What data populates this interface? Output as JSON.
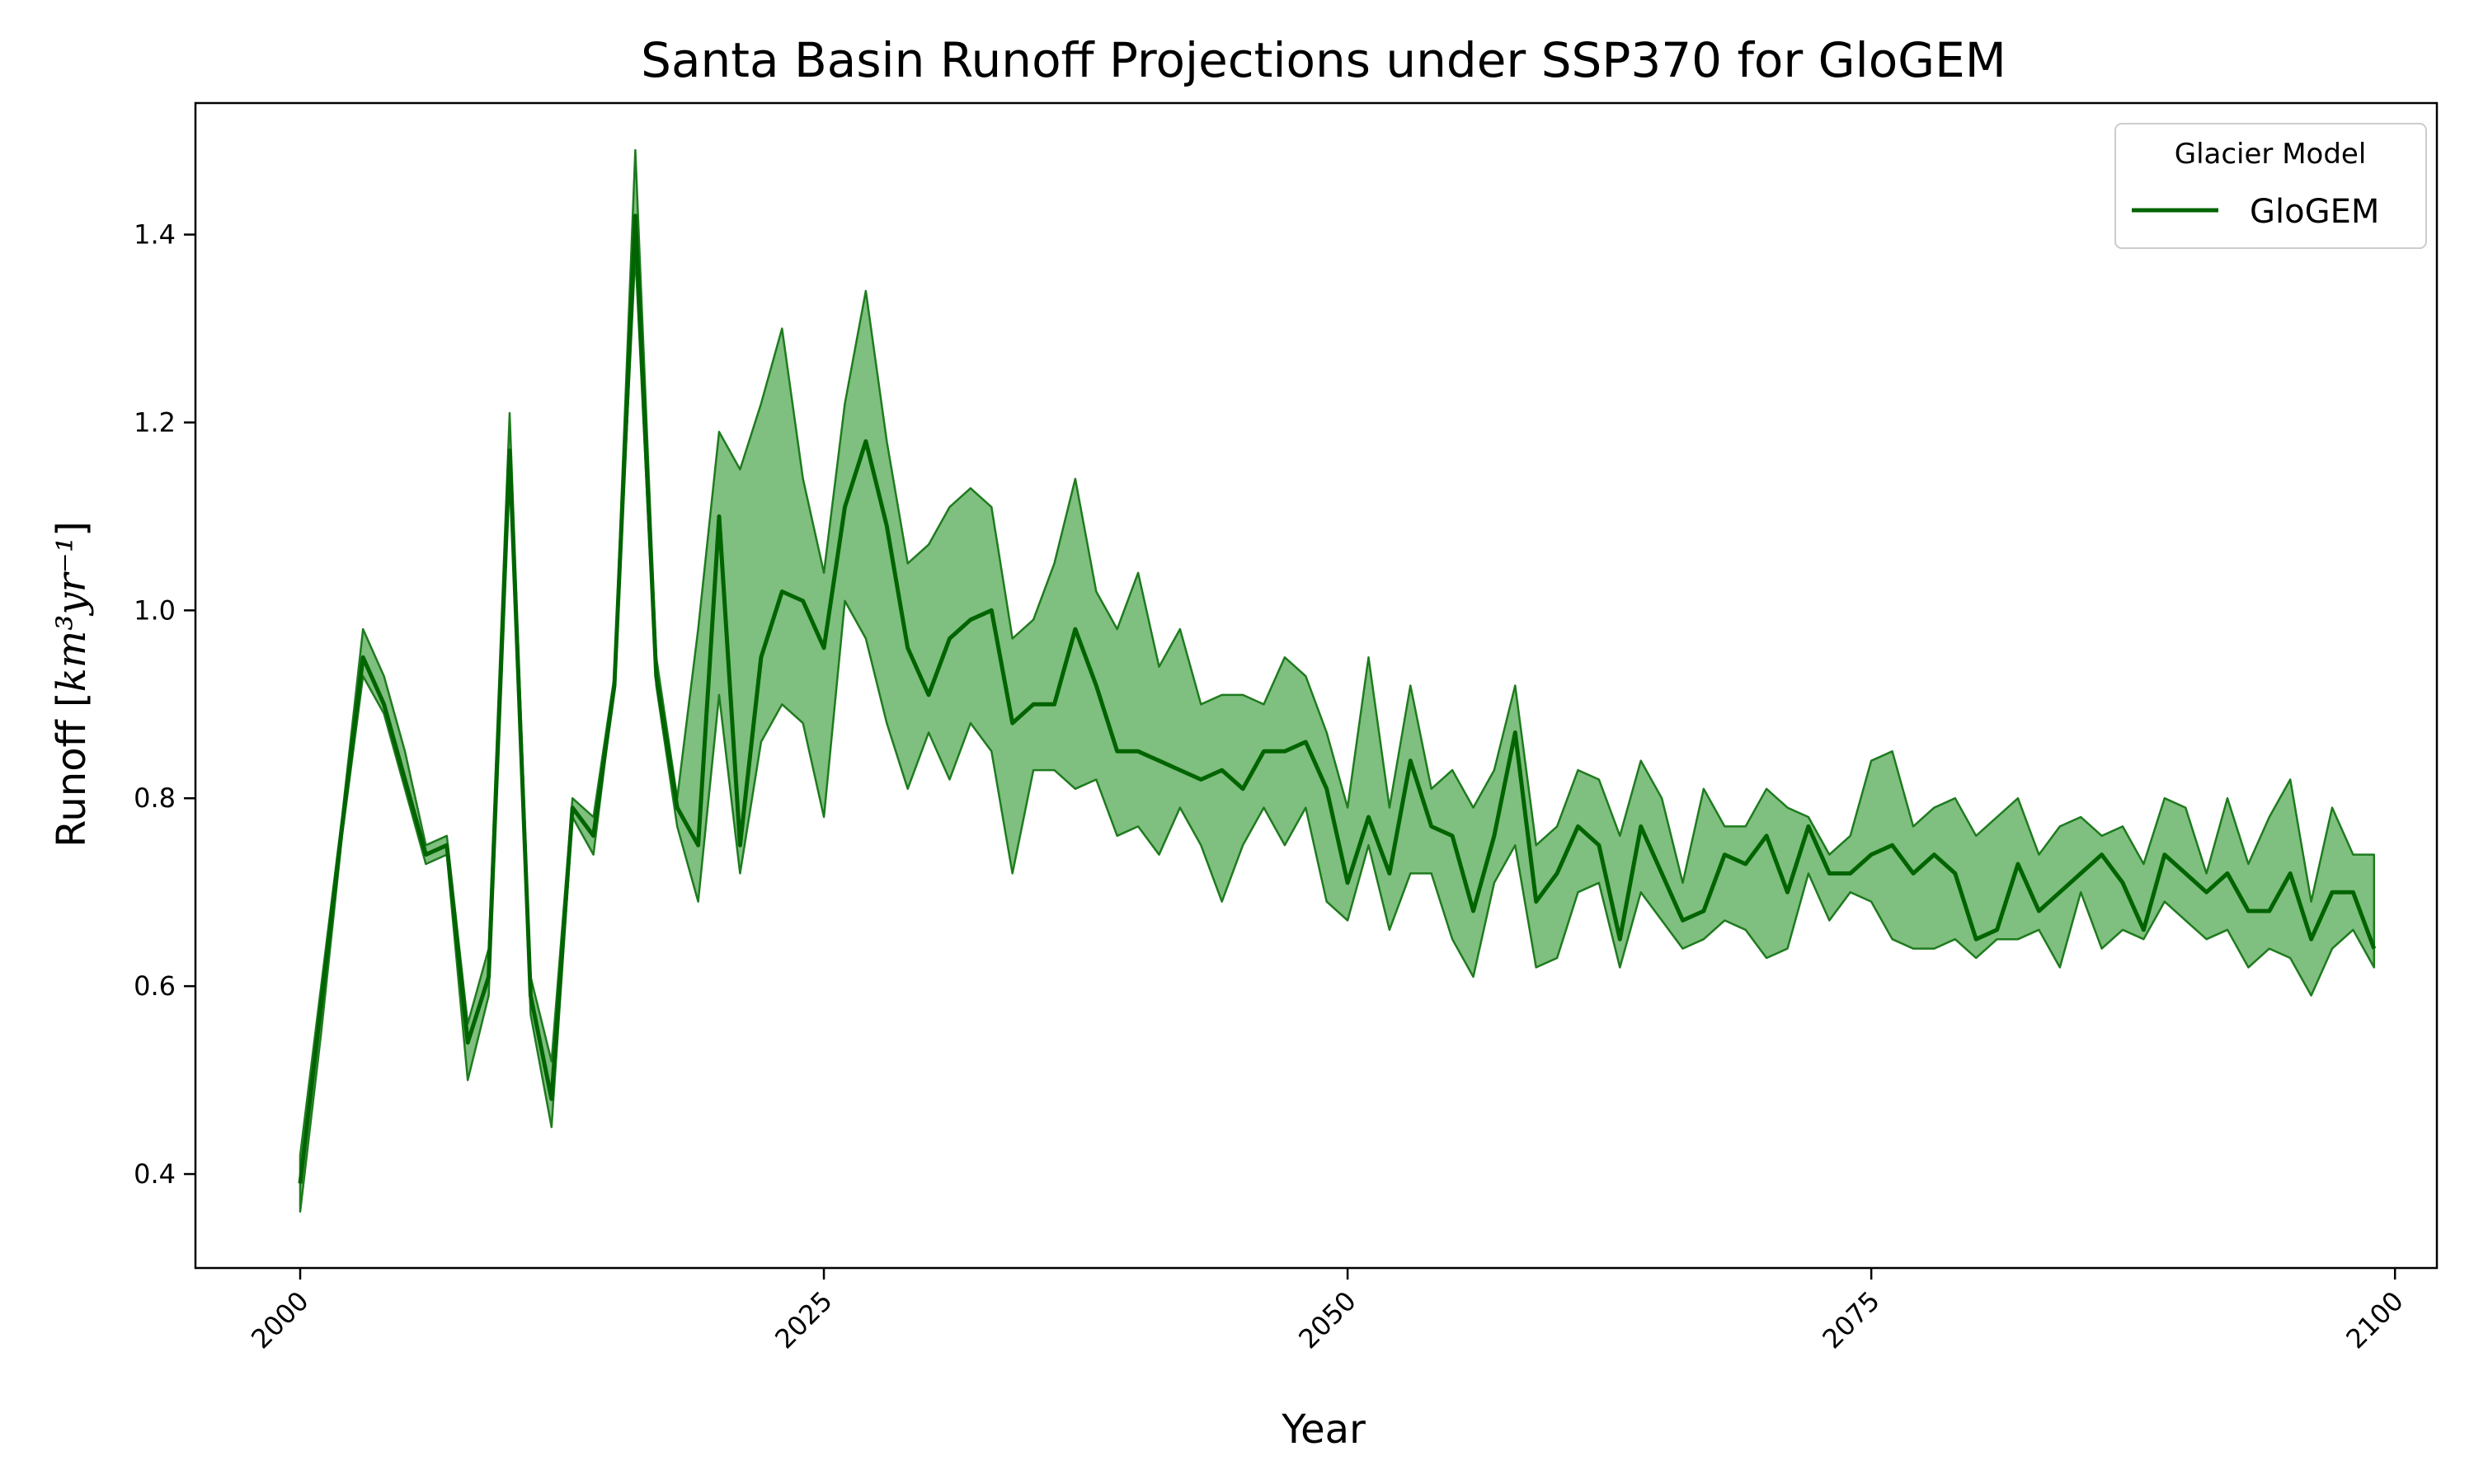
{
  "chart_data": {
    "type": "line",
    "title": "Santa Basin Runoff Projections under SSP370 for GloGEM",
    "xlabel": "Year",
    "ylabel_prefix": "Runoff [",
    "ylabel_math": "km³yr⁻¹",
    "ylabel_suffix": "]",
    "xlim": [
      1995,
      2102
    ],
    "ylim": [
      0.3,
      1.54
    ],
    "x_ticks": [
      2000,
      2025,
      2050,
      2075,
      2100
    ],
    "x_tick_labels": [
      "2000",
      "2025",
      "2050",
      "2075",
      "2100"
    ],
    "y_ticks": [
      0.4,
      0.6,
      0.8,
      1.0,
      1.2,
      1.4
    ],
    "y_tick_labels": [
      "0.4",
      "0.6",
      "0.8",
      "1.0",
      "1.2",
      "1.4"
    ],
    "grid": false,
    "legend": {
      "title": "Glacier Model",
      "placement": "top-right",
      "entries": [
        {
          "name": "GloGEM",
          "color": "#006400"
        }
      ]
    },
    "series": [
      {
        "name": "GloGEM",
        "line_color": "#006400",
        "band_fill": "#7fbf7f",
        "band_edge": "#1e7b1e",
        "x": [
          2000,
          2001,
          2002,
          2003,
          2004,
          2005,
          2006,
          2007,
          2008,
          2009,
          2010,
          2011,
          2012,
          2013,
          2014,
          2015,
          2016,
          2017,
          2018,
          2019,
          2020,
          2021,
          2022,
          2023,
          2024,
          2025,
          2026,
          2027,
          2028,
          2029,
          2030,
          2031,
          2032,
          2033,
          2034,
          2035,
          2036,
          2037,
          2038,
          2039,
          2040,
          2041,
          2042,
          2043,
          2044,
          2045,
          2046,
          2047,
          2048,
          2049,
          2050,
          2051,
          2052,
          2053,
          2054,
          2055,
          2056,
          2057,
          2058,
          2059,
          2060,
          2061,
          2062,
          2063,
          2064,
          2065,
          2066,
          2067,
          2068,
          2069,
          2070,
          2071,
          2072,
          2073,
          2074,
          2075,
          2076,
          2077,
          2078,
          2079,
          2080,
          2081,
          2082,
          2083,
          2084,
          2085,
          2086,
          2087,
          2088,
          2089,
          2090,
          2091,
          2092,
          2093,
          2094,
          2095,
          2096,
          2097,
          2098,
          2099
        ],
        "mean": [
          0.39,
          0.58,
          0.77,
          0.95,
          0.9,
          0.82,
          0.74,
          0.75,
          0.54,
          0.61,
          1.17,
          0.59,
          0.48,
          0.79,
          0.76,
          0.92,
          1.42,
          0.93,
          0.79,
          0.75,
          1.1,
          0.75,
          0.95,
          1.02,
          1.01,
          0.96,
          1.11,
          1.18,
          1.09,
          0.96,
          0.91,
          0.97,
          0.99,
          1.0,
          0.88,
          0.9,
          0.9,
          0.98,
          0.92,
          0.85,
          0.85,
          0.84,
          0.83,
          0.82,
          0.83,
          0.81,
          0.85,
          0.85,
          0.86,
          0.81,
          0.71,
          0.78,
          0.72,
          0.84,
          0.77,
          0.76,
          0.68,
          0.76,
          0.87,
          0.69,
          0.72,
          0.77,
          0.75,
          0.65,
          0.77,
          0.72,
          0.67,
          0.68,
          0.74,
          0.73,
          0.76,
          0.7,
          0.77,
          0.72,
          0.72,
          0.74,
          0.75,
          0.72,
          0.74,
          0.72,
          0.65,
          0.66,
          0.73,
          0.68,
          0.7,
          0.72,
          0.74,
          0.71,
          0.66,
          0.74,
          0.72,
          0.7,
          0.72,
          0.68,
          0.68,
          0.72,
          0.65,
          0.7,
          0.7,
          0.64
        ],
        "upper": [
          0.42,
          0.6,
          0.78,
          0.98,
          0.93,
          0.85,
          0.75,
          0.76,
          0.56,
          0.64,
          1.21,
          0.61,
          0.52,
          0.8,
          0.78,
          0.93,
          1.49,
          0.95,
          0.8,
          0.98,
          1.19,
          1.15,
          1.22,
          1.3,
          1.14,
          1.04,
          1.22,
          1.34,
          1.18,
          1.05,
          1.07,
          1.11,
          1.13,
          1.11,
          0.97,
          0.99,
          1.05,
          1.14,
          1.02,
          0.98,
          1.04,
          0.94,
          0.98,
          0.9,
          0.91,
          0.91,
          0.9,
          0.95,
          0.93,
          0.87,
          0.79,
          0.95,
          0.79,
          0.92,
          0.81,
          0.83,
          0.79,
          0.83,
          0.92,
          0.75,
          0.77,
          0.83,
          0.82,
          0.76,
          0.84,
          0.8,
          0.71,
          0.81,
          0.77,
          0.77,
          0.81,
          0.79,
          0.78,
          0.74,
          0.76,
          0.84,
          0.85,
          0.77,
          0.79,
          0.8,
          0.76,
          0.78,
          0.8,
          0.74,
          0.77,
          0.78,
          0.76,
          0.77,
          0.73,
          0.8,
          0.79,
          0.72,
          0.8,
          0.73,
          0.78,
          0.82,
          0.69,
          0.79,
          0.74,
          0.74
        ],
        "lower": [
          0.36,
          0.55,
          0.76,
          0.93,
          0.89,
          0.81,
          0.73,
          0.74,
          0.5,
          0.59,
          1.15,
          0.57,
          0.45,
          0.78,
          0.74,
          0.92,
          1.38,
          0.92,
          0.77,
          0.69,
          0.91,
          0.72,
          0.86,
          0.9,
          0.88,
          0.78,
          1.01,
          0.97,
          0.88,
          0.81,
          0.87,
          0.82,
          0.88,
          0.85,
          0.72,
          0.83,
          0.83,
          0.81,
          0.82,
          0.76,
          0.77,
          0.74,
          0.79,
          0.75,
          0.69,
          0.75,
          0.79,
          0.75,
          0.79,
          0.69,
          0.67,
          0.75,
          0.66,
          0.72,
          0.72,
          0.65,
          0.61,
          0.71,
          0.75,
          0.62,
          0.63,
          0.7,
          0.71,
          0.62,
          0.7,
          0.67,
          0.64,
          0.65,
          0.67,
          0.66,
          0.63,
          0.64,
          0.72,
          0.67,
          0.7,
          0.69,
          0.65,
          0.64,
          0.64,
          0.65,
          0.63,
          0.65,
          0.65,
          0.66,
          0.62,
          0.7,
          0.64,
          0.66,
          0.65,
          0.69,
          0.67,
          0.65,
          0.66,
          0.62,
          0.64,
          0.63,
          0.59,
          0.64,
          0.66,
          0.62
        ]
      }
    ]
  }
}
